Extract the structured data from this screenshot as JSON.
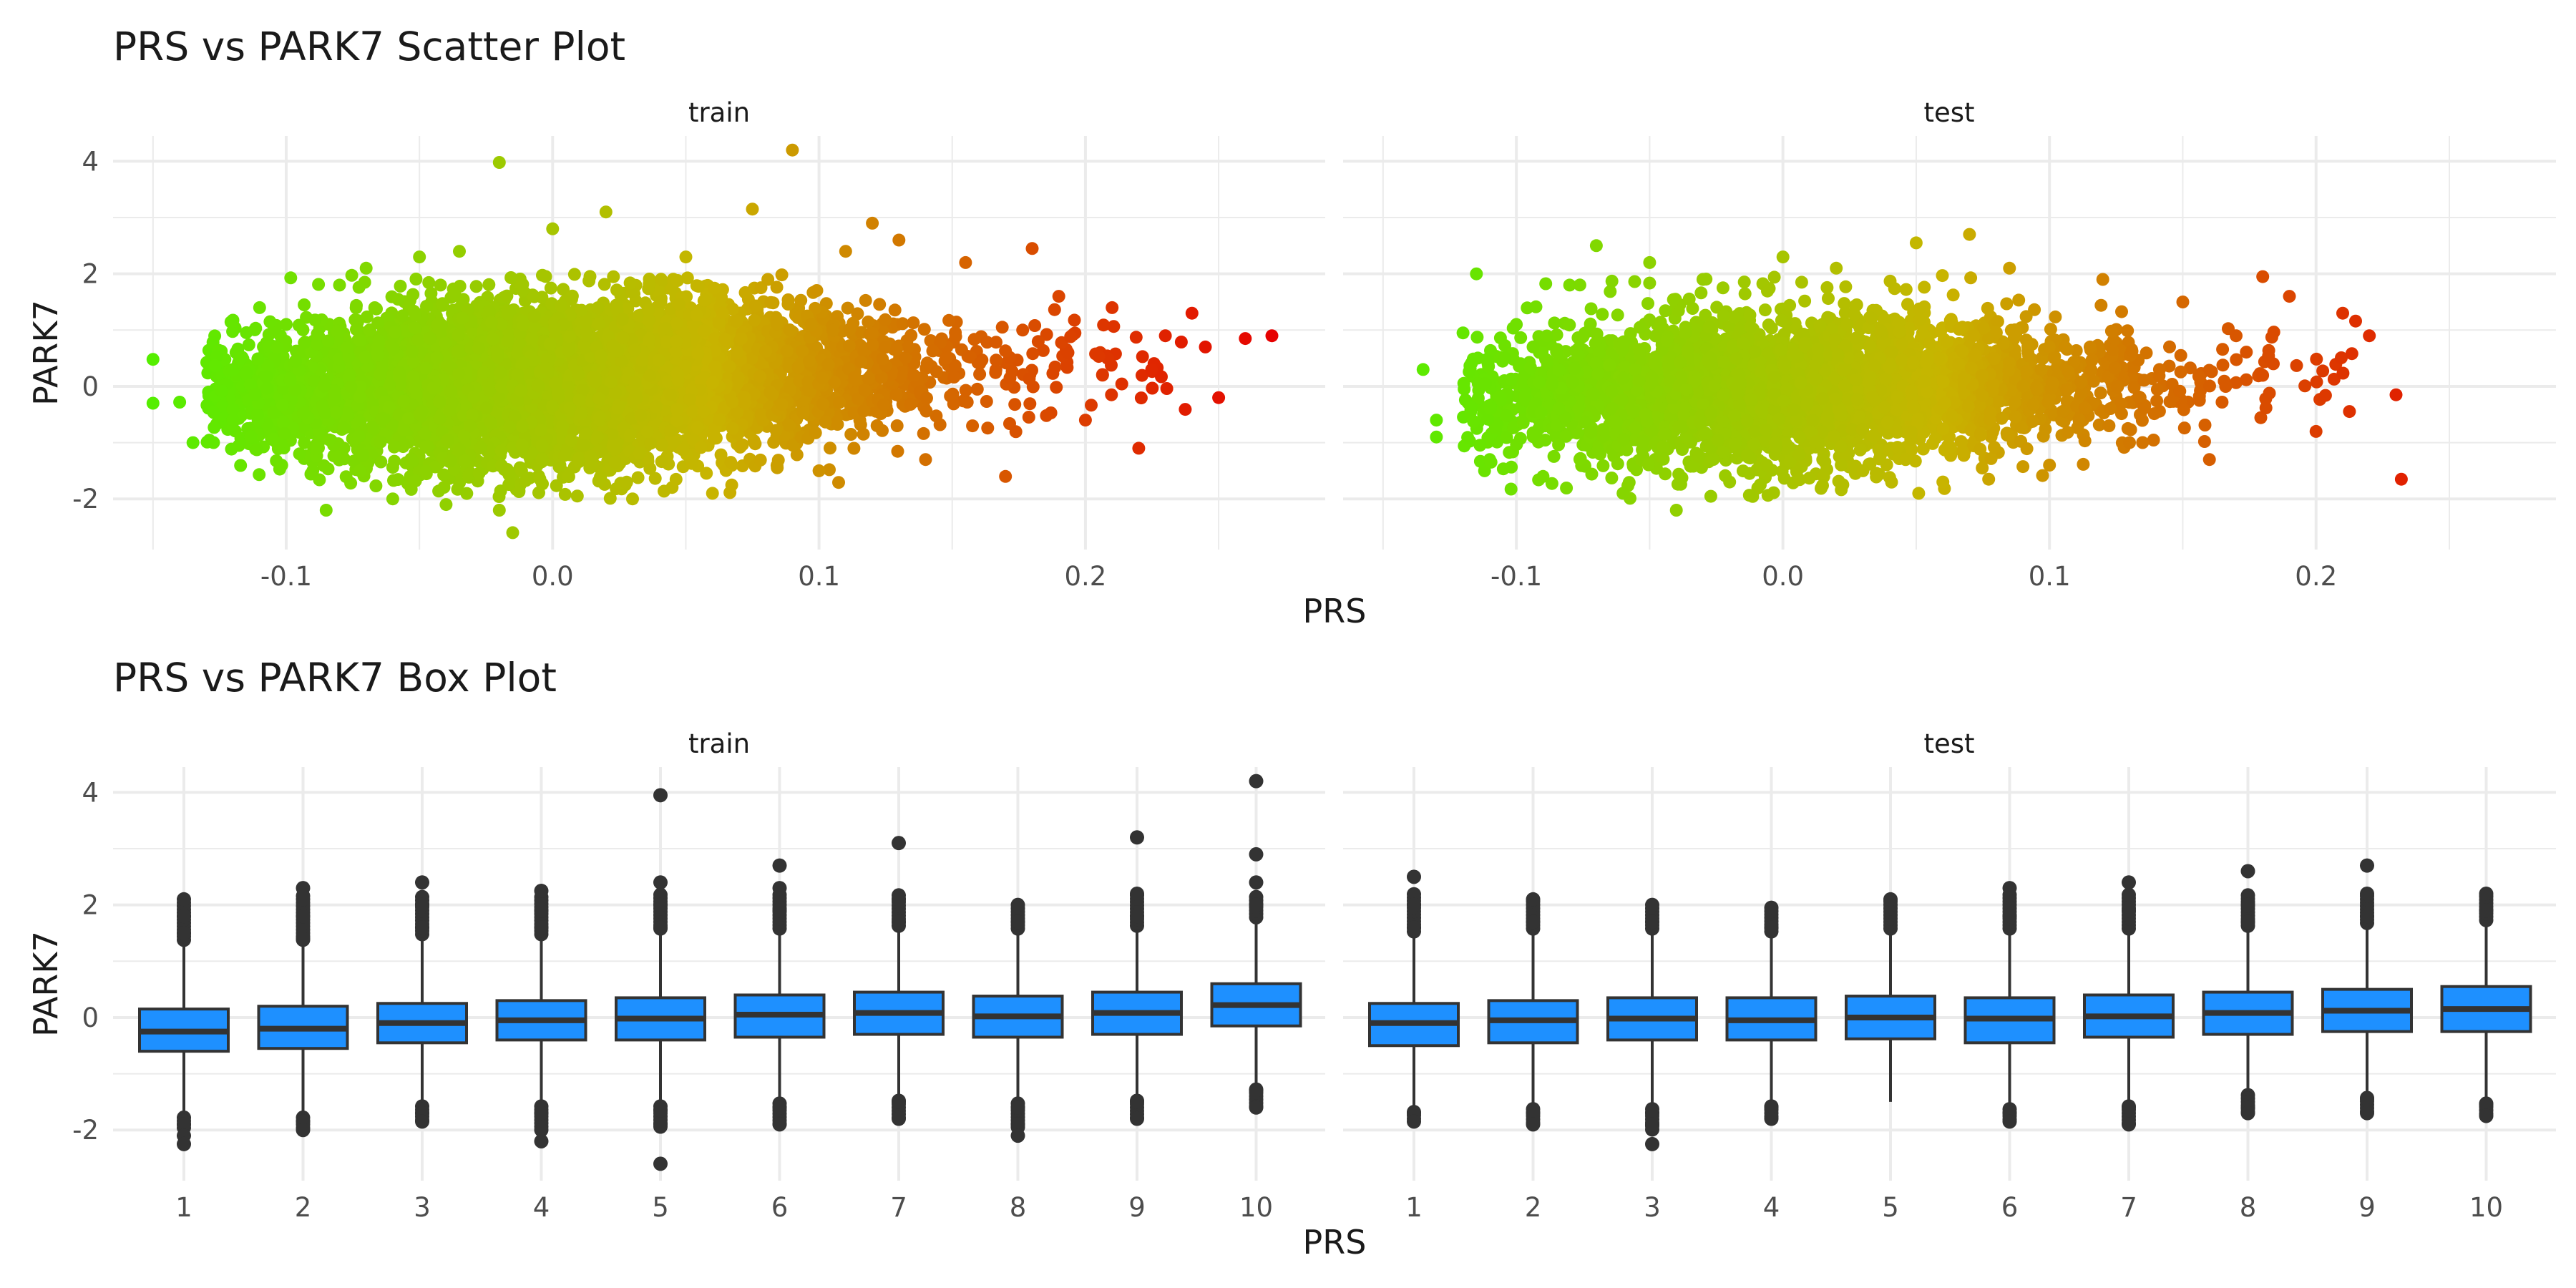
{
  "chart_data": [
    {
      "type": "scatter",
      "title": "PRS vs PARK7 Scatter Plot",
      "xlabel": "PRS",
      "ylabel": "PARK7",
      "facets": [
        "train",
        "test"
      ],
      "xlim": [
        -0.165,
        0.29
      ],
      "ylim": [
        -2.9,
        4.45
      ],
      "x_ticks": [
        -0.1,
        0.0,
        0.1,
        0.2
      ],
      "x_tick_labels": [
        "-0.1",
        "0.0",
        "0.1",
        "0.2"
      ],
      "y_ticks": [
        -2,
        0,
        2,
        4
      ],
      "y_tick_labels": [
        "-2",
        "0",
        "2",
        "4"
      ],
      "grid": true,
      "color_scale": {
        "low": "#55ee00",
        "mid": "#c8b400",
        "high": "#e60000",
        "range": [
          -0.15,
          0.27
        ]
      },
      "train_points": [
        [
          -0.15,
          0.48
        ],
        [
          -0.15,
          -0.3
        ],
        [
          -0.14,
          -0.28
        ],
        [
          -0.135,
          -1.0
        ],
        [
          -0.12,
          0.3
        ],
        [
          -0.12,
          -0.6
        ],
        [
          -0.11,
          1.4
        ],
        [
          -0.1,
          1.1
        ],
        [
          -0.095,
          -1.2
        ],
        [
          -0.09,
          -1.5
        ],
        [
          -0.085,
          -2.2
        ],
        [
          -0.08,
          1.8
        ],
        [
          -0.07,
          2.1
        ],
        [
          -0.06,
          -2.0
        ],
        [
          -0.05,
          2.3
        ],
        [
          -0.04,
          -2.1
        ],
        [
          -0.035,
          2.4
        ],
        [
          -0.02,
          3.98
        ],
        [
          -0.02,
          -2.2
        ],
        [
          -0.015,
          -2.6
        ],
        [
          0.0,
          2.8
        ],
        [
          0.02,
          3.1
        ],
        [
          0.03,
          -2.0
        ],
        [
          0.05,
          2.3
        ],
        [
          0.06,
          -1.9
        ],
        [
          0.075,
          3.15
        ],
        [
          0.09,
          4.2
        ],
        [
          0.1,
          -1.5
        ],
        [
          0.11,
          2.4
        ],
        [
          0.12,
          2.9
        ],
        [
          0.13,
          2.6
        ],
        [
          0.14,
          -1.3
        ],
        [
          0.155,
          2.2
        ],
        [
          0.17,
          -1.6
        ],
        [
          0.18,
          2.45
        ],
        [
          0.19,
          1.6
        ],
        [
          0.2,
          -0.6
        ],
        [
          0.21,
          1.4
        ],
        [
          0.22,
          -1.1
        ],
        [
          0.23,
          0.9
        ],
        [
          0.24,
          1.3
        ],
        [
          0.245,
          0.7
        ],
        [
          0.25,
          -0.2
        ],
        [
          0.26,
          0.85
        ],
        [
          0.27,
          0.9
        ]
      ],
      "test_points": [
        [
          -0.135,
          0.3
        ],
        [
          -0.13,
          -0.9
        ],
        [
          -0.13,
          -0.6
        ],
        [
          -0.12,
          0.95
        ],
        [
          -0.115,
          2.0
        ],
        [
          -0.11,
          -1.3
        ],
        [
          -0.1,
          1.1
        ],
        [
          -0.09,
          -1.6
        ],
        [
          -0.08,
          1.8
        ],
        [
          -0.07,
          2.5
        ],
        [
          -0.06,
          -1.9
        ],
        [
          -0.05,
          2.2
        ],
        [
          -0.04,
          -2.2
        ],
        [
          -0.03,
          1.9
        ],
        [
          -0.02,
          -1.7
        ],
        [
          0.0,
          2.3
        ],
        [
          0.02,
          2.1
        ],
        [
          0.03,
          -1.5
        ],
        [
          0.05,
          2.55
        ],
        [
          0.06,
          -1.7
        ],
        [
          0.07,
          2.7
        ],
        [
          0.085,
          2.1
        ],
        [
          0.1,
          -1.4
        ],
        [
          0.12,
          1.9
        ],
        [
          0.13,
          -1.0
        ],
        [
          0.15,
          1.5
        ],
        [
          0.16,
          -1.3
        ],
        [
          0.17,
          0.9
        ],
        [
          0.18,
          1.95
        ],
        [
          0.19,
          1.6
        ],
        [
          0.2,
          -0.8
        ],
        [
          0.21,
          1.3
        ],
        [
          0.22,
          0.9
        ],
        [
          0.23,
          -0.15
        ],
        [
          0.232,
          -1.65
        ]
      ],
      "train_cloud": {
        "x_range": [
          -0.13,
          0.24
        ],
        "y_center": [
          -0.1,
          0.4
        ],
        "y_spread": 0.75
      },
      "test_cloud": {
        "x_range": [
          -0.12,
          0.22
        ],
        "y_center": [
          -0.2,
          0.2
        ],
        "y_spread": 0.7
      }
    },
    {
      "type": "box",
      "title": "PRS vs PARK7 Box Plot",
      "xlabel": "PRS",
      "ylabel": "PARK7",
      "facets": [
        "train",
        "test"
      ],
      "categories": [
        "1",
        "2",
        "3",
        "4",
        "5",
        "6",
        "7",
        "8",
        "9",
        "10"
      ],
      "ylim": [
        -2.9,
        4.45
      ],
      "y_ticks": [
        -2,
        0,
        2,
        4
      ],
      "y_tick_labels": [
        "-2",
        "0",
        "2",
        "4"
      ],
      "box_fill": "#1e90ff",
      "train": [
        {
          "q1": -0.6,
          "median": -0.25,
          "q3": 0.15,
          "lo": -1.7,
          "hi": 1.3,
          "out_top": [
            2.1,
            1.8,
            1.5
          ],
          "out_bottom": [
            -1.9,
            -2.1,
            -2.25
          ]
        },
        {
          "q1": -0.55,
          "median": -0.2,
          "q3": 0.2,
          "lo": -1.7,
          "hi": 1.3,
          "out_top": [
            2.3,
            1.8,
            1.4
          ],
          "out_bottom": [
            -1.85,
            -2.0
          ]
        },
        {
          "q1": -0.45,
          "median": -0.1,
          "q3": 0.25,
          "lo": -1.5,
          "hi": 1.4,
          "out_top": [
            2.4,
            2.0,
            1.6
          ],
          "out_bottom": [
            -1.7,
            -1.85
          ]
        },
        {
          "q1": -0.4,
          "median": -0.05,
          "q3": 0.3,
          "lo": -1.5,
          "hi": 1.4,
          "out_top": [
            2.25,
            1.9,
            1.6
          ],
          "out_bottom": [
            -1.7,
            -2.0,
            -2.2
          ]
        },
        {
          "q1": -0.4,
          "median": -0.02,
          "q3": 0.35,
          "lo": -1.5,
          "hi": 1.5,
          "out_top": [
            3.95,
            2.4,
            2.0,
            1.6
          ],
          "out_bottom": [
            -1.65,
            -1.9,
            -2.6
          ]
        },
        {
          "q1": -0.35,
          "median": 0.05,
          "q3": 0.4,
          "lo": -1.45,
          "hi": 1.5,
          "out_top": [
            2.7,
            2.3,
            1.9
          ],
          "out_bottom": [
            -1.6,
            -1.9
          ]
        },
        {
          "q1": -0.3,
          "median": 0.08,
          "q3": 0.45,
          "lo": -1.4,
          "hi": 1.55,
          "out_top": [
            3.1,
            2.1,
            1.7
          ],
          "out_bottom": [
            -1.5,
            -1.8
          ]
        },
        {
          "q1": -0.35,
          "median": 0.02,
          "q3": 0.38,
          "lo": -1.45,
          "hi": 1.5,
          "out_top": [
            2.0,
            1.7
          ],
          "out_bottom": [
            -1.6,
            -1.9,
            -2.1
          ]
        },
        {
          "q1": -0.3,
          "median": 0.08,
          "q3": 0.45,
          "lo": -1.4,
          "hi": 1.55,
          "out_top": [
            3.2,
            2.2,
            1.8
          ],
          "out_bottom": [
            -1.5,
            -1.8
          ]
        },
        {
          "q1": -0.15,
          "median": 0.22,
          "q3": 0.6,
          "lo": -1.2,
          "hi": 1.7,
          "out_top": [
            4.2,
            2.9,
            2.4,
            2.0
          ],
          "out_bottom": [
            -1.3,
            -1.6
          ]
        }
      ],
      "test": [
        {
          "q1": -0.5,
          "median": -0.1,
          "q3": 0.25,
          "lo": -1.6,
          "hi": 1.45,
          "out_top": [
            2.5,
            2.0,
            1.6
          ],
          "out_bottom": [
            -1.7,
            -1.85
          ]
        },
        {
          "q1": -0.45,
          "median": -0.05,
          "q3": 0.3,
          "lo": -1.55,
          "hi": 1.5,
          "out_top": [
            2.1,
            1.7
          ],
          "out_bottom": [
            -1.7,
            -1.9
          ]
        },
        {
          "q1": -0.4,
          "median": -0.02,
          "q3": 0.35,
          "lo": -1.55,
          "hi": 1.5,
          "out_top": [
            2.0,
            1.7
          ],
          "out_bottom": [
            -1.7,
            -1.9,
            -2.25
          ]
        },
        {
          "q1": -0.4,
          "median": -0.05,
          "q3": 0.35,
          "lo": -1.5,
          "hi": 1.45,
          "out_top": [
            1.95,
            1.6
          ],
          "out_bottom": [
            -1.6,
            -1.8
          ]
        },
        {
          "q1": -0.38,
          "median": 0.0,
          "q3": 0.38,
          "lo": -1.5,
          "hi": 1.5,
          "out_top": [
            2.1
          ],
          "out_bottom": []
        },
        {
          "q1": -0.45,
          "median": -0.02,
          "q3": 0.35,
          "lo": -1.55,
          "hi": 1.5,
          "out_top": [
            2.3,
            1.8
          ],
          "out_bottom": [
            -1.7,
            -1.85
          ]
        },
        {
          "q1": -0.35,
          "median": 0.02,
          "q3": 0.4,
          "lo": -1.5,
          "hi": 1.5,
          "out_top": [
            2.4,
            1.9
          ],
          "out_bottom": [
            -1.6,
            -1.9
          ]
        },
        {
          "q1": -0.3,
          "median": 0.08,
          "q3": 0.45,
          "lo": -1.3,
          "hi": 1.55,
          "out_top": [
            2.6,
            2.0,
            1.7
          ],
          "out_bottom": [
            -1.6,
            -1.7
          ]
        },
        {
          "q1": -0.25,
          "median": 0.12,
          "q3": 0.5,
          "lo": -1.35,
          "hi": 1.6,
          "out_top": [
            2.7,
            2.2,
            1.8
          ],
          "out_bottom": [
            -1.45,
            -1.7
          ]
        },
        {
          "q1": -0.25,
          "median": 0.15,
          "q3": 0.55,
          "lo": -1.45,
          "hi": 1.65,
          "out_top": [
            2.2,
            1.9
          ],
          "out_bottom": [
            -1.55,
            -1.75
          ]
        }
      ]
    }
  ]
}
